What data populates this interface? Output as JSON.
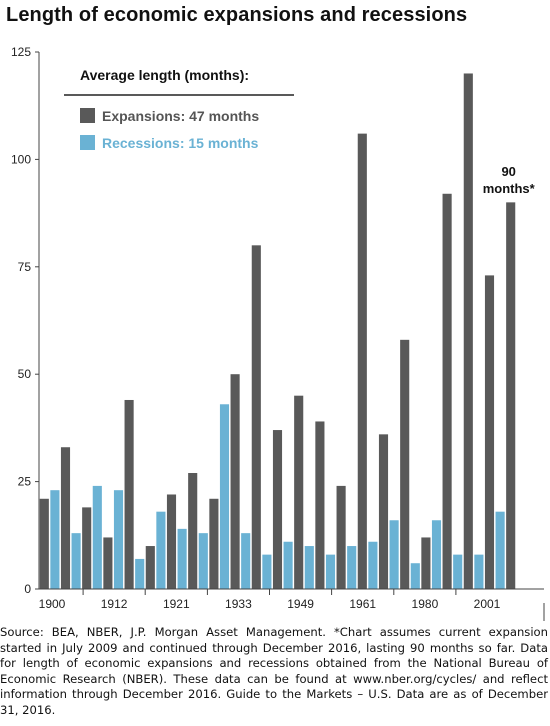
{
  "chart_data": {
    "type": "bar",
    "title": "Length of economic expansions and recessions",
    "x_tick_labels": [
      "1900",
      "1912",
      "1921",
      "1933",
      "1949",
      "1961",
      "1980",
      "2001"
    ],
    "ylim": [
      0,
      125
    ],
    "y_ticks": [
      0,
      25,
      50,
      75,
      100,
      125
    ],
    "grid": false,
    "legend": {
      "title": "Average length (months):",
      "placement": "top-left",
      "items": [
        {
          "label": "Expansions: 47 months",
          "color": "#595959"
        },
        {
          "label": "Recessions: 15 months",
          "color": "#6ab2d4"
        }
      ]
    },
    "series": [
      {
        "key": "recessions",
        "color": "#6ab2d4",
        "values": [
          23,
          13,
          24,
          23,
          7,
          18,
          14,
          13,
          43,
          13,
          8,
          11,
          10,
          8,
          10,
          11,
          16,
          6,
          16,
          8,
          8,
          18
        ]
      },
      {
        "key": "expansions",
        "color": "#595959",
        "values": [
          21,
          33,
          19,
          12,
          44,
          10,
          22,
          27,
          21,
          50,
          80,
          37,
          45,
          39,
          24,
          106,
          36,
          58,
          12,
          92,
          120,
          73,
          90
        ]
      }
    ],
    "annotation": {
      "line1": "90",
      "line2": "months*"
    }
  },
  "source_note": "Source: BEA, NBER, J.P. Morgan Asset Management. *Chart assumes current expansion started in July 2009 and continued through December 2016, lasting 90 months so far. Data for length of economic expansions and recessions obtained from the National Bureau of Economic Research (NBER). These data can be found at www.nber.org/cycles/ and reflect information through December 2016. Guide to the Markets – U.S. Data are as of December 31, 2016."
}
